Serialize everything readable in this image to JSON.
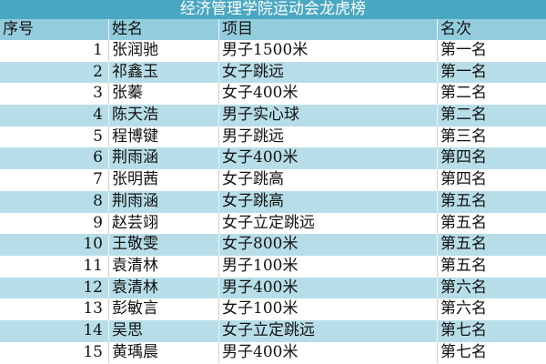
{
  "title": "经济管理学院运动会龙虎榜",
  "headers": [
    "序号",
    "姓名",
    "项目",
    "名次"
  ],
  "rows": [
    [
      "1",
      "张润驰",
      "男子1500米",
      "第一名"
    ],
    [
      "2",
      "祁鑫玉",
      "女子跳远",
      "第一名"
    ],
    [
      "3",
      "张蓁",
      "女子400米",
      "第二名"
    ],
    [
      "4",
      "陈天浩",
      "男子实心球",
      "第二名"
    ],
    [
      "5",
      "程博键",
      "男子跳远",
      "第三名"
    ],
    [
      "6",
      "荆雨涵",
      "女子400米",
      "第四名"
    ],
    [
      "7",
      "张明茜",
      "女子跳高",
      "第四名"
    ],
    [
      "8",
      "荆雨涵",
      "女子跳高",
      "第五名"
    ],
    [
      "9",
      "赵芸翊",
      "女子立定跳远",
      "第五名"
    ],
    [
      "10",
      "王敬雯",
      "女子800米",
      "第五名"
    ],
    [
      "11",
      "袁清林",
      "男子100米",
      "第五名"
    ],
    [
      "12",
      "袁清林",
      "男子400米",
      "第六名"
    ],
    [
      "13",
      "彭敏言",
      "女子100米",
      "第六名"
    ],
    [
      "14",
      "吴思",
      "女子立定跳远",
      "第七名"
    ],
    [
      "15",
      "黄瑀晨",
      "男子400米",
      "第七名"
    ]
  ],
  "colors": {
    "title_bg": "#4aa7c1",
    "header_bg": "#93cddd",
    "band": "#b7dee8"
  }
}
